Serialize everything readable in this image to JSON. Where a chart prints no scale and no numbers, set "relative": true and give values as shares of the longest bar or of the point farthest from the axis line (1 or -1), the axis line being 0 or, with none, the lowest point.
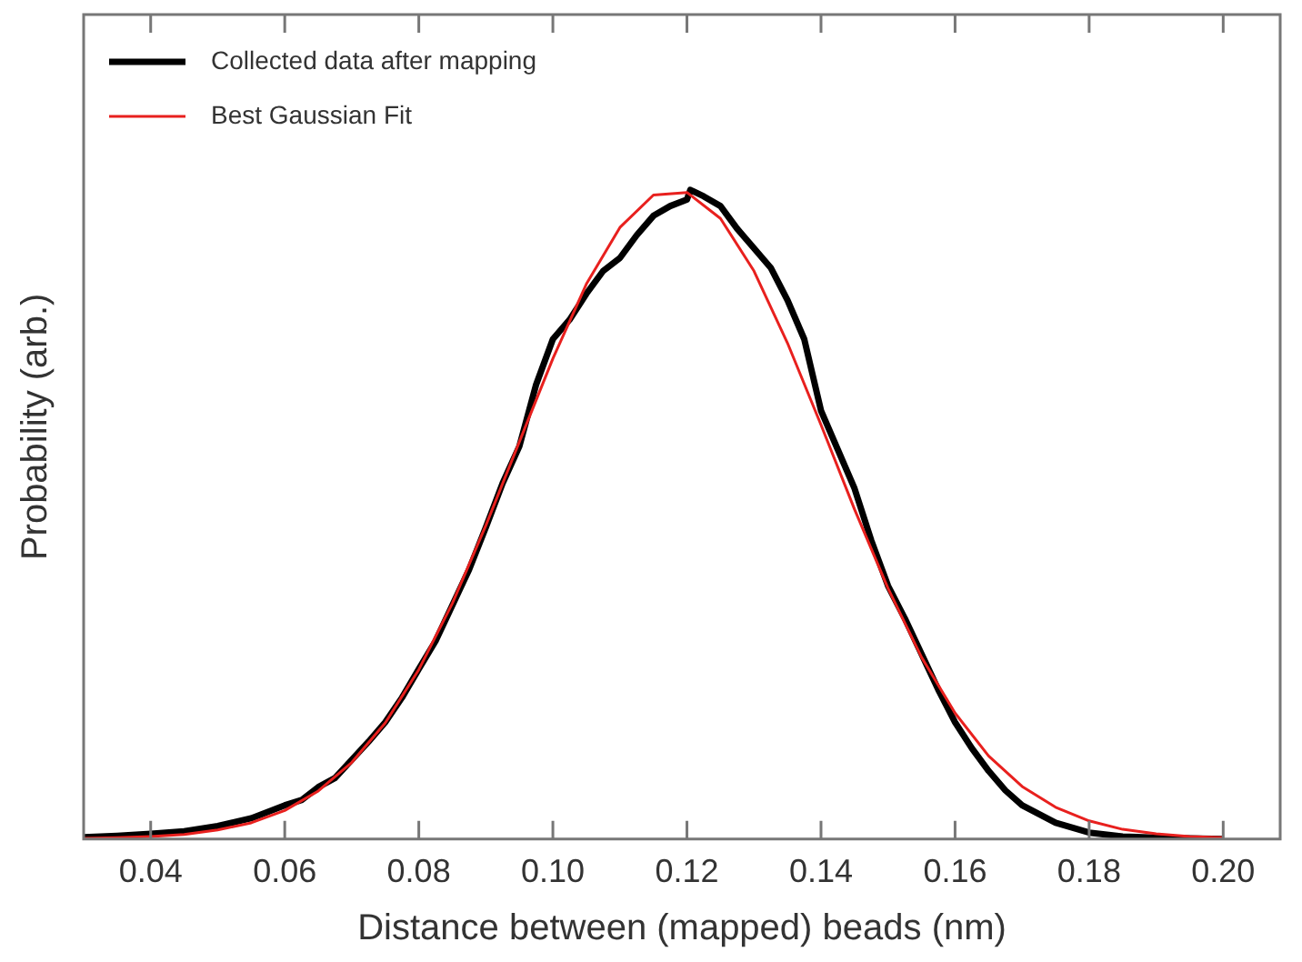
{
  "chart_data": {
    "type": "line",
    "xlabel": "Distance between (mapped) beads (nm)",
    "ylabel": "Probability (arb.)",
    "relative": true,
    "xlim": [
      0.03,
      0.2085
    ],
    "xticks": [
      {
        "value": 0.04,
        "label": "0.04"
      },
      {
        "value": 0.06,
        "label": "0.06"
      },
      {
        "value": 0.08,
        "label": "0.08"
      },
      {
        "value": 0.1,
        "label": "0.10"
      },
      {
        "value": 0.12,
        "label": "0.12"
      },
      {
        "value": 0.14,
        "label": "0.14"
      },
      {
        "value": 0.16,
        "label": "0.16"
      },
      {
        "value": 0.18,
        "label": "0.18"
      },
      {
        "value": 0.2,
        "label": "0.20"
      }
    ],
    "grid": false,
    "legend": "top left",
    "marker": "none",
    "line_style": "solid",
    "series": [
      {
        "name": "Collected data after mapping",
        "color": "#000000",
        "x": [
          0.03,
          0.035,
          0.04,
          0.045,
          0.05,
          0.055,
          0.06,
          0.0625,
          0.065,
          0.0675,
          0.07,
          0.0725,
          0.075,
          0.0775,
          0.08,
          0.0825,
          0.085,
          0.0875,
          0.09,
          0.0925,
          0.095,
          0.0975,
          0.1,
          0.1025,
          0.105,
          0.1075,
          0.11,
          0.1125,
          0.115,
          0.1175,
          0.12,
          0.1205,
          0.1225,
          0.125,
          0.1275,
          0.13,
          0.1325,
          0.135,
          0.1375,
          0.14,
          0.1425,
          0.145,
          0.1475,
          0.15,
          0.1525,
          0.155,
          0.1575,
          0.16,
          0.1625,
          0.165,
          0.1675,
          0.17,
          0.175,
          0.18,
          0.185,
          0.19,
          0.195,
          0.2
        ],
        "values": [
          0.003,
          0.005,
          0.008,
          0.012,
          0.02,
          0.032,
          0.052,
          0.06,
          0.08,
          0.094,
          0.122,
          0.15,
          0.18,
          0.218,
          0.262,
          0.305,
          0.36,
          0.415,
          0.48,
          0.548,
          0.605,
          0.7,
          0.77,
          0.8,
          0.84,
          0.875,
          0.895,
          0.93,
          0.96,
          0.975,
          0.985,
          1.0,
          0.99,
          0.975,
          0.94,
          0.91,
          0.88,
          0.83,
          0.77,
          0.66,
          0.6,
          0.54,
          0.46,
          0.39,
          0.34,
          0.285,
          0.23,
          0.18,
          0.14,
          0.105,
          0.075,
          0.052,
          0.025,
          0.01,
          0.004,
          0.002,
          0.001,
          0
        ]
      },
      {
        "name": "Best Gaussian Fit",
        "color": "#e8201e",
        "x": [
          0.03,
          0.035,
          0.04,
          0.045,
          0.05,
          0.055,
          0.06,
          0.065,
          0.07,
          0.075,
          0.08,
          0.085,
          0.09,
          0.095,
          0.1,
          0.105,
          0.11,
          0.115,
          0.12,
          0.125,
          0.13,
          0.135,
          0.14,
          0.145,
          0.15,
          0.155,
          0.16,
          0.165,
          0.17,
          0.175,
          0.18,
          0.185,
          0.19,
          0.195,
          0.2
        ],
        "values": [
          0.001,
          0.002,
          0.004,
          0.007,
          0.014,
          0.025,
          0.044,
          0.074,
          0.118,
          0.179,
          0.261,
          0.363,
          0.483,
          0.612,
          0.74,
          0.855,
          0.942,
          0.992,
          0.996,
          0.956,
          0.875,
          0.764,
          0.638,
          0.508,
          0.386,
          0.28,
          0.194,
          0.128,
          0.081,
          0.049,
          0.028,
          0.015,
          0.008,
          0.004,
          0.002
        ]
      }
    ]
  }
}
